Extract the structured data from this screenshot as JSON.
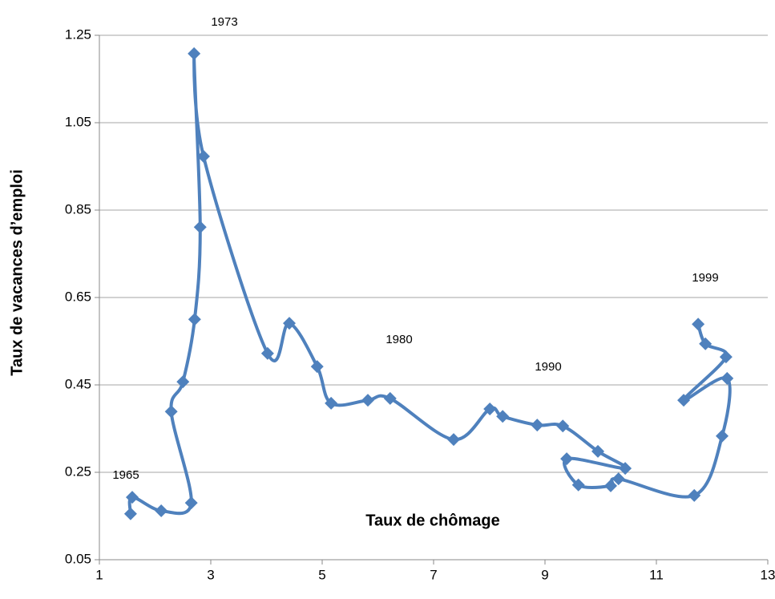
{
  "chart_data": {
    "type": "line",
    "xlabel": "Taux de chômage",
    "ylabel": "Taux de vacances d’emploi",
    "color": "#4f81bd",
    "grid": true,
    "xlim": [
      1,
      13
    ],
    "ylim": [
      0.05,
      1.25
    ],
    "xticks": [
      1,
      3,
      5,
      7,
      9,
      11,
      13
    ],
    "yticks": [
      0.05,
      0.25,
      0.45,
      0.65,
      0.85,
      1.05,
      1.25
    ],
    "x": [
      1.56,
      1.59,
      2.11,
      2.65,
      2.29,
      2.5,
      2.71,
      2.81,
      2.7,
      2.87,
      4.02,
      4.41,
      4.91,
      5.16,
      5.82,
      6.22,
      7.36,
      8.01,
      8.24,
      8.86,
      9.32,
      9.95,
      10.44,
      9.39,
      9.6,
      10.18,
      10.32,
      11.68,
      12.18,
      12.27,
      11.49,
      12.25,
      11.88,
      11.75
    ],
    "values": [
      0.155,
      0.193,
      0.162,
      0.18,
      0.389,
      0.457,
      0.6,
      0.811,
      1.208,
      0.973,
      0.522,
      0.591,
      0.492,
      0.408,
      0.415,
      0.419,
      0.325,
      0.395,
      0.378,
      0.358,
      0.356,
      0.298,
      0.259,
      0.281,
      0.221,
      0.219,
      0.235,
      0.197,
      0.333,
      0.465,
      0.415,
      0.514,
      0.544,
      0.589
    ],
    "annotations": [
      {
        "text": "1965"
      },
      {
        "text": "1973"
      },
      {
        "text": "1980"
      },
      {
        "text": "1990"
      },
      {
        "text": "1999"
      }
    ]
  }
}
